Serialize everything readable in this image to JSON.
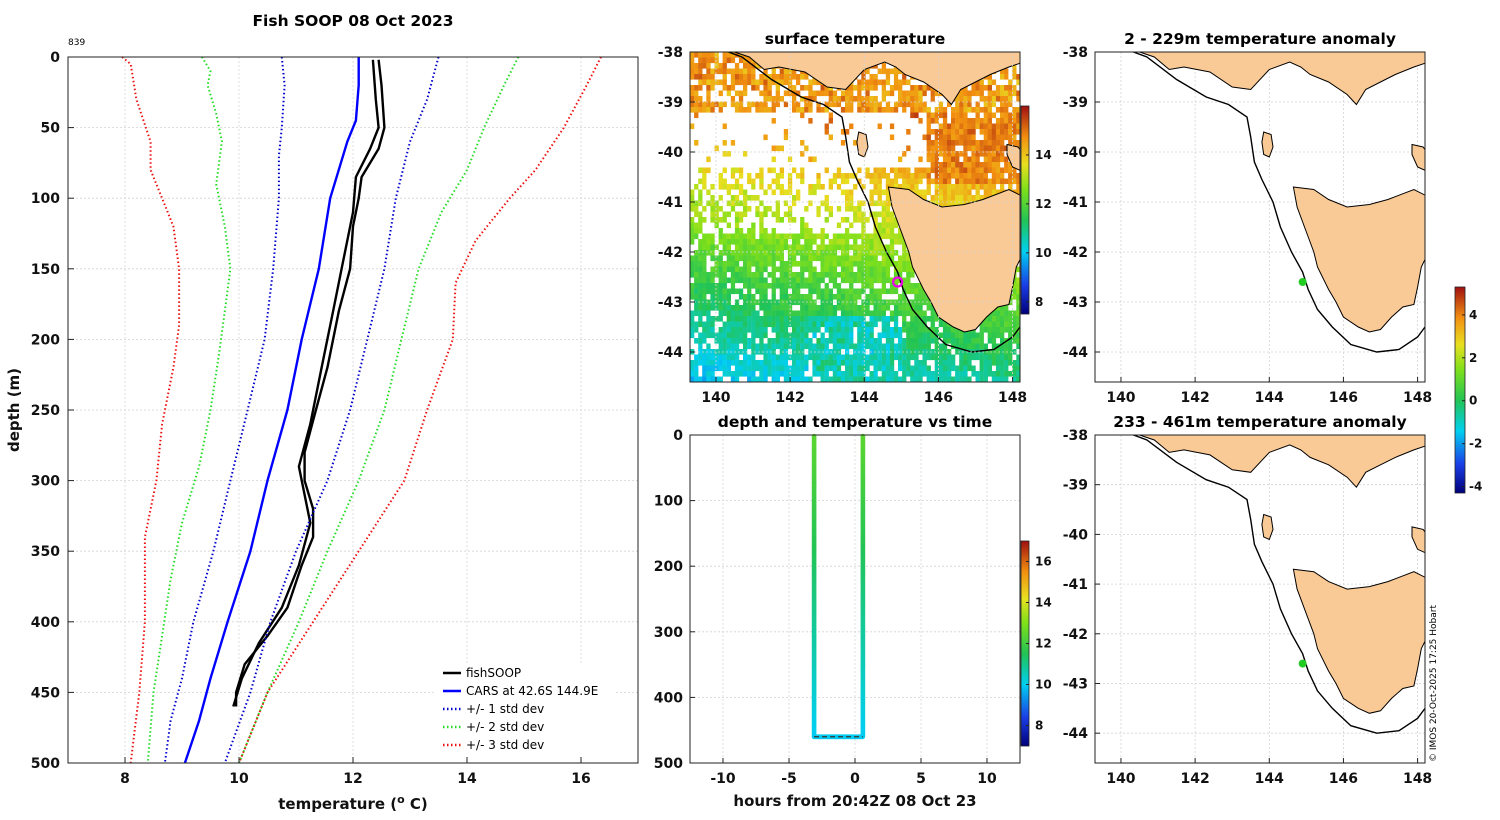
{
  "chart_data": [
    {
      "id": "profile",
      "type": "line",
      "title": "Fish SOOP 08 Oct 2023",
      "corner_label": "839",
      "xlabel": "temperature (° C)",
      "xlabel_main": "temperature (",
      "xlabel_sup": "o",
      "xlabel_end": " C)",
      "ylabel": "depth (m)",
      "xlim": [
        7,
        17
      ],
      "ylim": [
        0,
        500
      ],
      "y_reversed": true,
      "xticks": [
        8,
        10,
        12,
        14,
        16
      ],
      "yticks": [
        0,
        50,
        100,
        150,
        200,
        250,
        300,
        350,
        400,
        450,
        500
      ],
      "legend_position": "bottom-right",
      "legend": [
        {
          "label": "fishSOOP",
          "color": "#000000",
          "style": "solid"
        },
        {
          "label": "CARS at 42.6S 144.9E",
          "color": "#0000ff",
          "style": "solid"
        },
        {
          "label": "+/- 1 std dev",
          "color": "#0000cc",
          "style": "dotted"
        },
        {
          "label": "+/- 2 std dev",
          "color": "#22dd22",
          "style": "dotted"
        },
        {
          "label": "+/- 3 std dev",
          "color": "#ee1111",
          "style": "dotted"
        }
      ],
      "series": [
        {
          "name": "fishSOOP (down)",
          "color": "#000000",
          "style": "solid",
          "width": 2.4,
          "points": [
            [
              12.45,
              2
            ],
            [
              12.5,
              20
            ],
            [
              12.55,
              50
            ],
            [
              12.45,
              65
            ],
            [
              12.3,
              75
            ],
            [
              12.15,
              85
            ],
            [
              12.1,
              100
            ],
            [
              12.0,
              120
            ],
            [
              11.95,
              150
            ],
            [
              11.75,
              180
            ],
            [
              11.55,
              220
            ],
            [
              11.35,
              250
            ],
            [
              11.15,
              280
            ],
            [
              11.15,
              300
            ],
            [
              11.3,
              320
            ],
            [
              11.3,
              340
            ],
            [
              11.1,
              360
            ],
            [
              10.85,
              390
            ],
            [
              10.5,
              410
            ],
            [
              10.1,
              430
            ],
            [
              9.95,
              450
            ],
            [
              9.95,
              460
            ]
          ]
        },
        {
          "name": "fishSOOP (up)",
          "color": "#000000",
          "style": "solid",
          "width": 2.4,
          "points": [
            [
              12.35,
              2
            ],
            [
              12.4,
              30
            ],
            [
              12.45,
              50
            ],
            [
              12.3,
              65
            ],
            [
              12.05,
              85
            ],
            [
              12.0,
              110
            ],
            [
              11.8,
              150
            ],
            [
              11.65,
              180
            ],
            [
              11.45,
              220
            ],
            [
              11.25,
              260
            ],
            [
              11.05,
              290
            ],
            [
              11.15,
              310
            ],
            [
              11.25,
              330
            ],
            [
              11.05,
              360
            ],
            [
              10.75,
              390
            ],
            [
              10.35,
              415
            ],
            [
              10.05,
              440
            ],
            [
              9.9,
              460
            ]
          ]
        },
        {
          "name": "CARS at 42.6S 144.9E",
          "color": "#0000ff",
          "style": "solid",
          "width": 2.4,
          "points": [
            [
              12.1,
              0
            ],
            [
              12.1,
              20
            ],
            [
              12.05,
              45
            ],
            [
              11.9,
              60
            ],
            [
              11.6,
              100
            ],
            [
              11.4,
              150
            ],
            [
              11.1,
              200
            ],
            [
              10.85,
              250
            ],
            [
              10.5,
              300
            ],
            [
              10.2,
              350
            ],
            [
              9.8,
              400
            ],
            [
              9.5,
              440
            ],
            [
              9.3,
              470
            ],
            [
              9.05,
              500
            ]
          ]
        },
        {
          "name": "-1 std",
          "color": "#0000cc",
          "style": "dotted",
          "width": 2,
          "points": [
            [
              10.75,
              0
            ],
            [
              10.8,
              20
            ],
            [
              10.75,
              50
            ],
            [
              10.7,
              70
            ],
            [
              10.7,
              100
            ],
            [
              10.6,
              150
            ],
            [
              10.45,
              200
            ],
            [
              10.15,
              250
            ],
            [
              9.85,
              300
            ],
            [
              9.55,
              350
            ],
            [
              9.2,
              400
            ],
            [
              9.0,
              440
            ],
            [
              8.8,
              470
            ],
            [
              8.7,
              500
            ]
          ]
        },
        {
          "name": "+1 std",
          "color": "#0000cc",
          "style": "dotted",
          "width": 2,
          "points": [
            [
              13.5,
              0
            ],
            [
              13.3,
              30
            ],
            [
              13.0,
              60
            ],
            [
              12.75,
              100
            ],
            [
              12.55,
              150
            ],
            [
              12.25,
              200
            ],
            [
              11.95,
              250
            ],
            [
              11.55,
              300
            ],
            [
              11.0,
              350
            ],
            [
              10.55,
              400
            ],
            [
              10.2,
              450
            ],
            [
              9.75,
              500
            ]
          ]
        },
        {
          "name": "-2 std",
          "color": "#22dd22",
          "style": "dotted",
          "width": 2,
          "points": [
            [
              9.35,
              0
            ],
            [
              9.5,
              10
            ],
            [
              9.45,
              20
            ],
            [
              9.6,
              40
            ],
            [
              9.7,
              60
            ],
            [
              9.6,
              90
            ],
            [
              9.75,
              120
            ],
            [
              9.85,
              150
            ],
            [
              9.75,
              180
            ],
            [
              9.65,
              210
            ],
            [
              9.5,
              250
            ],
            [
              9.3,
              290
            ],
            [
              9.0,
              330
            ],
            [
              8.8,
              370
            ],
            [
              8.65,
              410
            ],
            [
              8.5,
              450
            ],
            [
              8.4,
              500
            ]
          ]
        },
        {
          "name": "+2 std",
          "color": "#22dd22",
          "style": "dotted",
          "width": 2,
          "points": [
            [
              14.9,
              0
            ],
            [
              14.65,
              20
            ],
            [
              14.3,
              50
            ],
            [
              14.0,
              80
            ],
            [
              13.55,
              110
            ],
            [
              13.15,
              150
            ],
            [
              12.85,
              200
            ],
            [
              12.55,
              250
            ],
            [
              12.1,
              300
            ],
            [
              11.55,
              350
            ],
            [
              11.05,
              400
            ],
            [
              10.5,
              450
            ],
            [
              10.0,
              500
            ]
          ]
        },
        {
          "name": "-3 std",
          "color": "#ee1111",
          "style": "dotted",
          "width": 2,
          "points": [
            [
              7.95,
              0
            ],
            [
              8.1,
              5
            ],
            [
              8.2,
              30
            ],
            [
              8.45,
              60
            ],
            [
              8.45,
              80
            ],
            [
              8.65,
              100
            ],
            [
              8.85,
              120
            ],
            [
              8.95,
              150
            ],
            [
              8.95,
              190
            ],
            [
              8.85,
              220
            ],
            [
              8.65,
              260
            ],
            [
              8.55,
              300
            ],
            [
              8.35,
              340
            ],
            [
              8.35,
              400
            ],
            [
              8.25,
              450
            ],
            [
              8.1,
              500
            ]
          ]
        },
        {
          "name": "+3 std",
          "color": "#ee1111",
          "style": "dotted",
          "width": 2,
          "points": [
            [
              16.35,
              0
            ],
            [
              16.1,
              20
            ],
            [
              15.7,
              50
            ],
            [
              15.2,
              80
            ],
            [
              14.75,
              100
            ],
            [
              14.15,
              130
            ],
            [
              13.8,
              160
            ],
            [
              13.75,
              200
            ],
            [
              13.3,
              250
            ],
            [
              12.9,
              300
            ],
            [
              12.1,
              350
            ],
            [
              11.3,
              400
            ],
            [
              10.5,
              450
            ],
            [
              10.0,
              500
            ]
          ]
        }
      ]
    },
    {
      "id": "sst",
      "type": "heatmap",
      "title": "surface temperature",
      "xlim": [
        139.3,
        148.2
      ],
      "ylim": [
        -44.6,
        -38
      ],
      "xticks": [
        140,
        142,
        144,
        146,
        148
      ],
      "yticks": [
        -38,
        -39,
        -40,
        -41,
        -42,
        -43,
        -44
      ],
      "colorbar": {
        "min": 7.5,
        "max": 16,
        "ticks": [
          8,
          10,
          12,
          14
        ]
      },
      "marker": {
        "lon": 144.9,
        "lat": -42.6,
        "style": "open circle",
        "color": "#ee00ee"
      }
    },
    {
      "id": "depth_time",
      "type": "scatter",
      "title": "depth and temperature vs time",
      "xlabel": "hours from 20:42Z 08 Oct 23",
      "xlim": [
        -12.5,
        12.5
      ],
      "ylim": [
        0,
        500
      ],
      "y_reversed": true,
      "xticks": [
        -10,
        -5,
        0,
        5,
        10
      ],
      "yticks": [
        0,
        100,
        200,
        300,
        400,
        500
      ],
      "colorbar": {
        "min": 7,
        "max": 17,
        "ticks": [
          8,
          10,
          12,
          14,
          16
        ]
      },
      "descent_time": -3.1,
      "ascent_time": 0.6,
      "bottom_depth": 460
    },
    {
      "id": "anom1",
      "type": "map",
      "title": "2 - 229m temperature anomaly",
      "xlim": [
        139.3,
        148.2
      ],
      "ylim": [
        -44.6,
        -38
      ],
      "xticks": [
        140,
        142,
        144,
        146,
        148
      ],
      "yticks": [
        -38,
        -39,
        -40,
        -41,
        -42,
        -43,
        -44
      ],
      "marker": {
        "lon": 144.9,
        "lat": -42.6,
        "color": "#22cc22"
      }
    },
    {
      "id": "anom2",
      "type": "map",
      "title": "233 - 461m temperature anomaly",
      "xlim": [
        139.3,
        148.2
      ],
      "ylim": [
        -44.6,
        -38
      ],
      "xticks": [
        140,
        142,
        144,
        146,
        148
      ],
      "yticks": [
        -38,
        -39,
        -40,
        -41,
        -42,
        -43,
        -44
      ],
      "marker": {
        "lon": 144.9,
        "lat": -42.6,
        "color": "#22cc22"
      }
    },
    {
      "id": "anom_colorbar",
      "type": "colorbar",
      "min": -4.3,
      "max": 5.3,
      "ticks": [
        -4,
        -2,
        0,
        2,
        4
      ]
    }
  ],
  "credit": "© IMOS 20-Oct-2025 17:25 Hobart"
}
